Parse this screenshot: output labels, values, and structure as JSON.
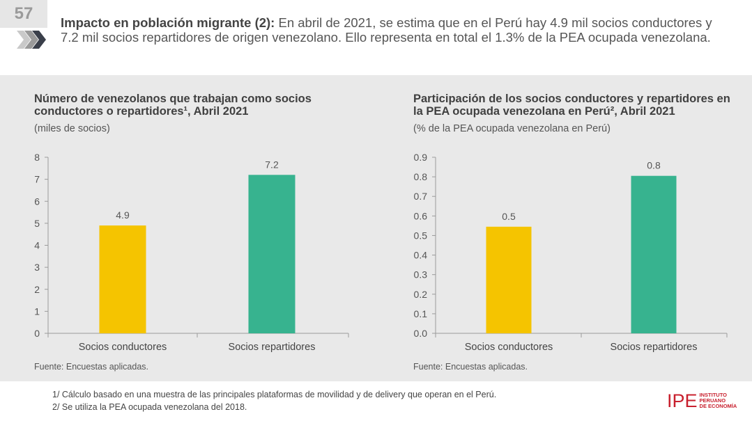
{
  "slide": {
    "number": "57"
  },
  "headline": {
    "bold": "Impacto en población migrante (2):",
    "text": " En abril de 2021, se estima que en el Perú hay 4.9 mil socios conductores y 7.2 mil socios repartidores de origen venezolano. Ello representa en total el 1.3% de la PEA ocupada venezolana."
  },
  "chart_data": [
    {
      "type": "bar",
      "title": "Número de venezolanos que trabajan como socios conductores o repartidores¹, Abril 2021",
      "subtitle": "(miles de socios)",
      "categories": [
        "Socios conductores",
        "Socios repartidores"
      ],
      "values": [
        4.9,
        7.2
      ],
      "data_labels": [
        "4.9",
        "7.2"
      ],
      "colors": [
        "#f5c400",
        "#37b38f"
      ],
      "ylim": [
        0,
        8
      ],
      "yticks": [
        "0",
        "1",
        "2",
        "3",
        "4",
        "5",
        "6",
        "7",
        "8"
      ],
      "source": "Fuente: Encuestas aplicadas."
    },
    {
      "type": "bar",
      "title": "Participación de los socios conductores y repartidores en la PEA ocupada venezolana en Perú², Abril 2021",
      "subtitle": "(% de la PEA ocupada venezolana en Perú)",
      "categories": [
        "Socios conductores",
        "Socios repartidores"
      ],
      "values": [
        0.545,
        0.805
      ],
      "data_labels": [
        "0.5",
        "0.8"
      ],
      "colors": [
        "#f5c400",
        "#37b38f"
      ],
      "ylim": [
        0,
        0.9
      ],
      "yticks": [
        "0.0",
        "0.1",
        "0.2",
        "0.3",
        "0.4",
        "0.5",
        "0.6",
        "0.7",
        "0.8",
        "0.9"
      ],
      "source": "Fuente: Encuestas aplicadas."
    }
  ],
  "footnotes": [
    "1/ Cálculo basado en una muestra de las principales plataformas de movilidad y de delivery que operan en el Perú.",
    "2/ Se utiliza la PEA ocupada venezolana del 2018."
  ],
  "logo": {
    "mark": "IPE",
    "line1": "INSTITUTO",
    "line2": "PERUANO",
    "line3": "DE ECONOMÍA"
  }
}
